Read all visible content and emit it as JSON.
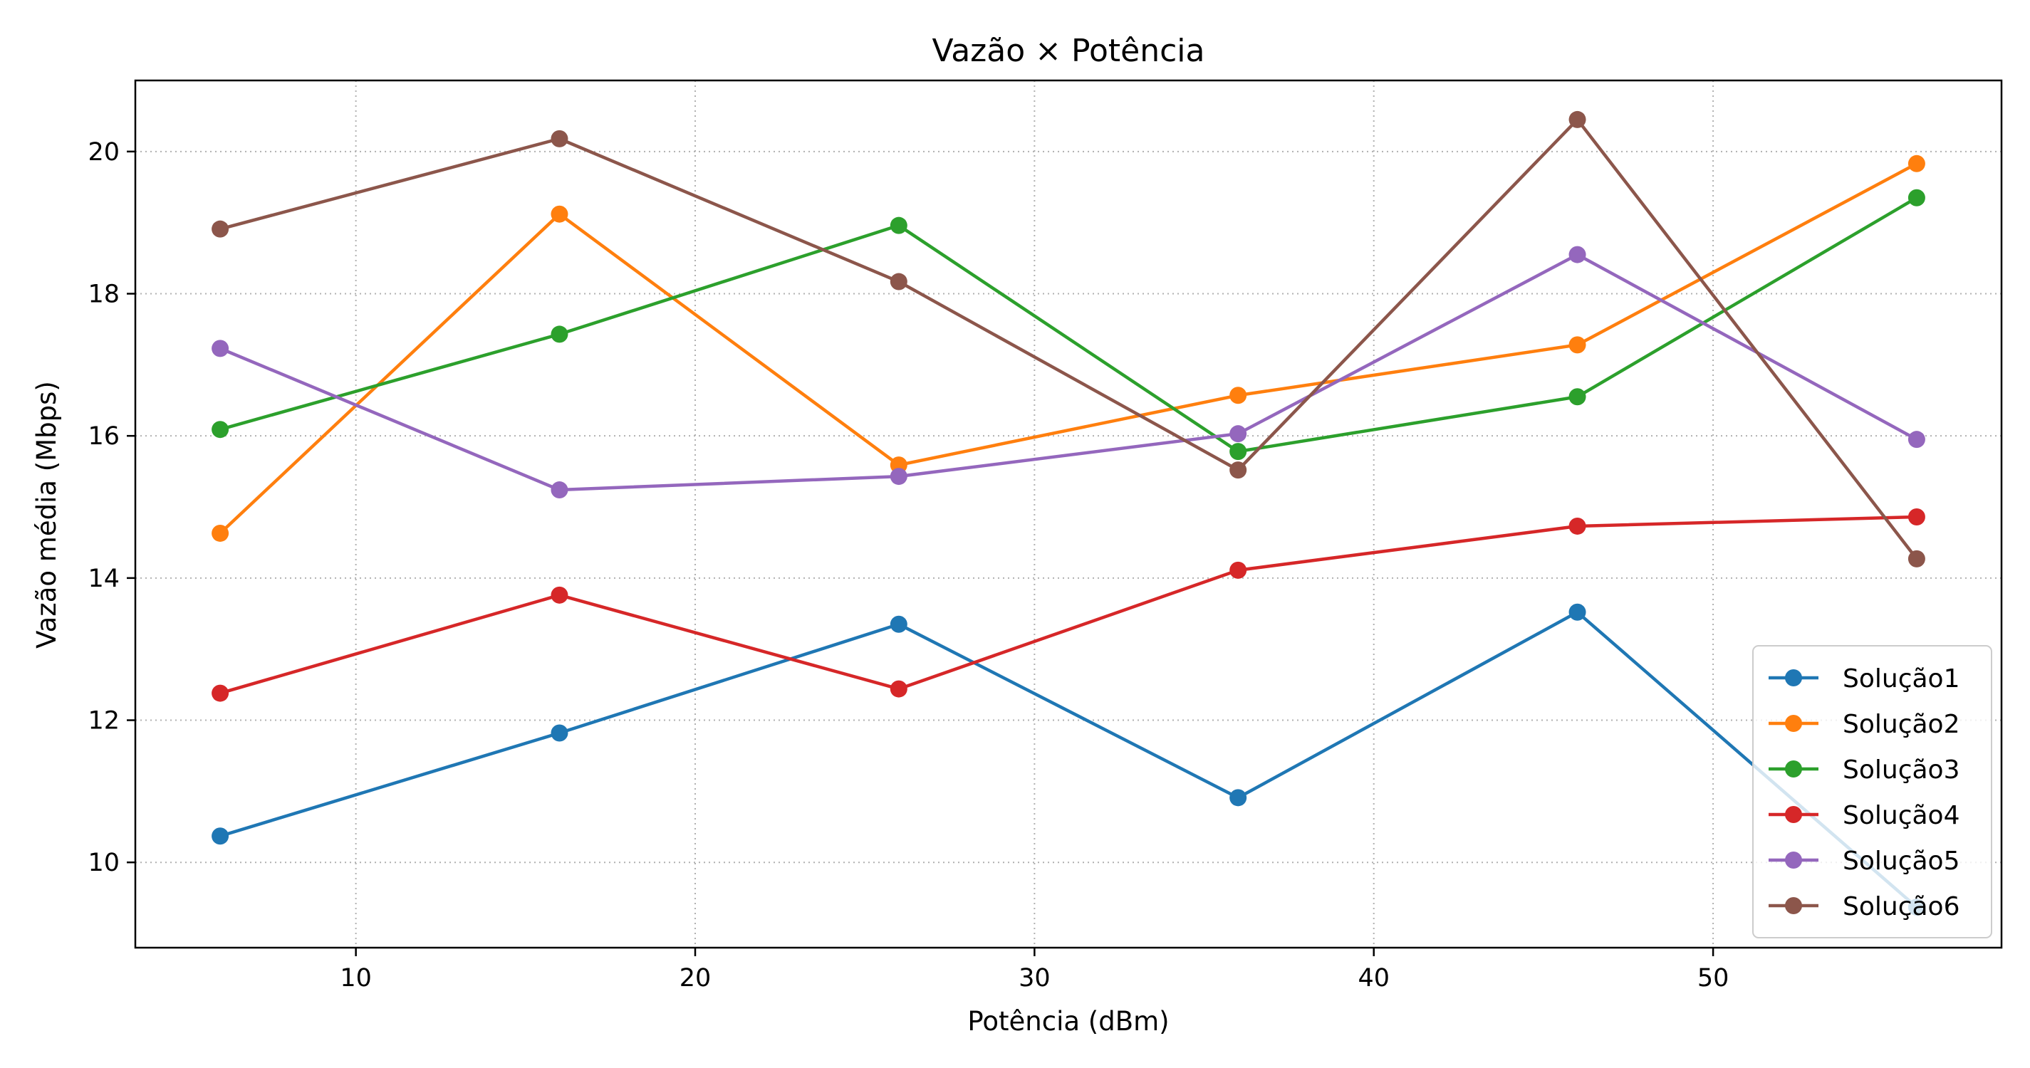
{
  "chart_data": {
    "type": "line",
    "title": "Vazão × Potência",
    "xlabel": "Potência (dBm)",
    "ylabel": "Vazão média (Mbps)",
    "x": [
      6,
      16,
      26,
      36,
      46,
      56
    ],
    "xlim": [
      3.5,
      58.5
    ],
    "ylim": [
      8.8,
      21.0
    ],
    "xticks": [
      10,
      20,
      30,
      40,
      50
    ],
    "yticks": [
      10,
      12,
      14,
      16,
      18,
      20
    ],
    "grid": true,
    "legend_position": "lower-right",
    "series": [
      {
        "name": "Solução1",
        "color": "#1f77b4",
        "values": [
          10.37,
          11.82,
          13.35,
          10.91,
          13.52,
          9.37
        ]
      },
      {
        "name": "Solução2",
        "color": "#ff7f0e",
        "values": [
          14.63,
          19.12,
          15.59,
          16.57,
          17.28,
          19.83
        ]
      },
      {
        "name": "Solução3",
        "color": "#2ca02c",
        "values": [
          16.09,
          17.43,
          18.96,
          15.78,
          16.55,
          19.35
        ]
      },
      {
        "name": "Solução4",
        "color": "#d62728",
        "values": [
          12.38,
          13.76,
          12.44,
          14.11,
          14.73,
          14.86
        ]
      },
      {
        "name": "Solução5",
        "color": "#9467bd",
        "values": [
          17.23,
          15.24,
          15.43,
          16.03,
          18.55,
          15.95
        ]
      },
      {
        "name": "Solução6",
        "color": "#8c564b",
        "values": [
          18.91,
          20.18,
          18.17,
          15.52,
          20.45,
          14.27
        ]
      }
    ]
  }
}
